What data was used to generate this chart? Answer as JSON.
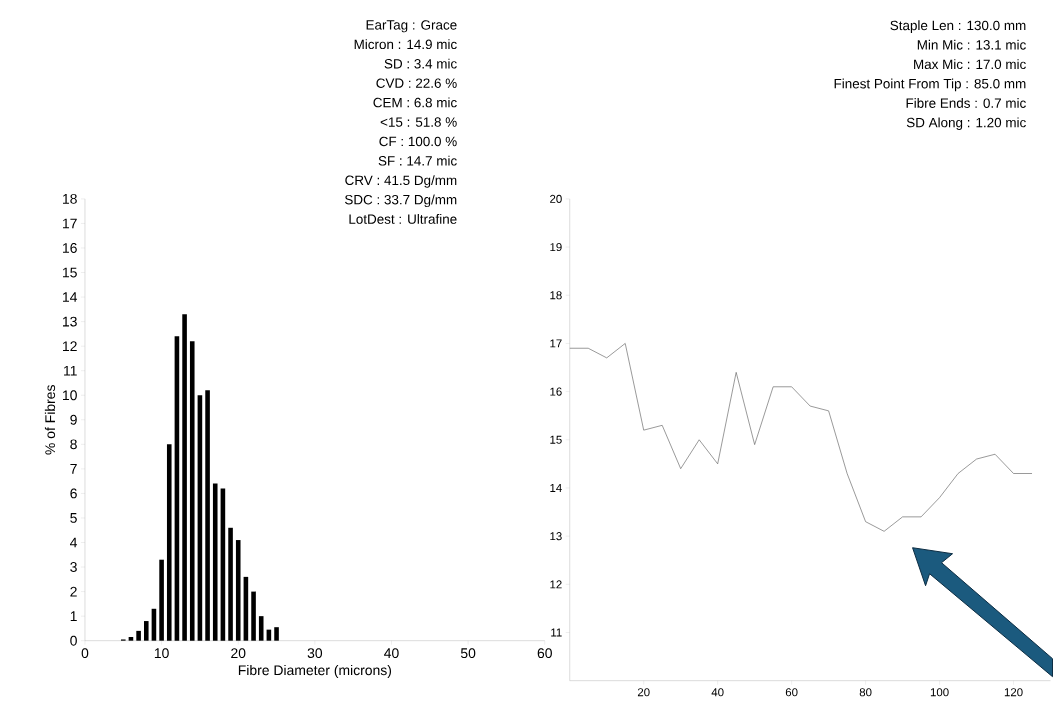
{
  "chart_data": [
    {
      "type": "bar",
      "x": [
        5,
        6,
        7,
        8,
        9,
        10,
        11,
        12,
        13,
        14,
        15,
        16,
        17,
        18,
        19,
        20,
        21,
        22,
        23,
        24,
        25
      ],
      "values": [
        0.05,
        0.15,
        0.4,
        0.8,
        1.3,
        3.3,
        8.0,
        12.4,
        13.3,
        12.2,
        10.0,
        10.2,
        6.4,
        6.2,
        4.6,
        4.1,
        2.6,
        2.0,
        1.0,
        0.45,
        0.55
      ],
      "color": "#000000",
      "xlabel": "Fibre Diameter (microns)",
      "ylabel": "% of Fibres",
      "xlim": [
        0,
        60
      ],
      "xticks": [
        0,
        10,
        20,
        30,
        40,
        50,
        60
      ],
      "ylim": [
        0,
        18
      ],
      "yticks": [
        0,
        1,
        2,
        3,
        4,
        5,
        6,
        7,
        8,
        9,
        10,
        11,
        12,
        13,
        14,
        15,
        16,
        17,
        18
      ],
      "annotations": [
        "EarTag : Grace",
        "Micron :   14.9 mic",
        "SD :    3.4 mic",
        "CVD :  22.6 %",
        "CEM :    6.8 mic",
        "<15 :  51.8 %",
        "CF : 100.0 %",
        "SF :  14.7 mic",
        "CRV :  41.5 Dg/mm",
        "SDC :  33.7 Dg/mm",
        "LotDest : Ultrafine"
      ]
    },
    {
      "type": "line",
      "x": [
        0,
        5,
        10,
        15,
        20,
        25,
        30,
        35,
        40,
        45,
        50,
        55,
        60,
        65,
        70,
        75,
        80,
        85,
        90,
        95,
        100,
        105,
        110,
        115,
        120,
        125
      ],
      "values": [
        16.9,
        16.9,
        16.7,
        17.0,
        15.2,
        15.3,
        14.4,
        15.0,
        14.5,
        16.4,
        14.9,
        16.1,
        16.1,
        15.7,
        15.6,
        14.3,
        13.3,
        13.1,
        13.4,
        13.4,
        13.8,
        14.3,
        14.6,
        14.7,
        14.3,
        14.3
      ],
      "color": "#555555",
      "marker": "none",
      "xlim": [
        0,
        130
      ],
      "xticks": [
        20,
        40,
        60,
        80,
        100,
        120
      ],
      "ylim": [
        10,
        20
      ],
      "yticks": [
        11,
        12,
        13,
        14,
        15,
        16,
        17,
        18,
        19,
        20
      ],
      "annotations": [
        "Staple Len : 130.0 mm",
        "Min Mic :  13.1 mic",
        "Max Mic :  17.0 mic",
        "Finest Point From Tip :  85.0 mm",
        "Fibre Ends :   0.7 mic",
        "SD Along :  1.20 mic"
      ]
    }
  ]
}
